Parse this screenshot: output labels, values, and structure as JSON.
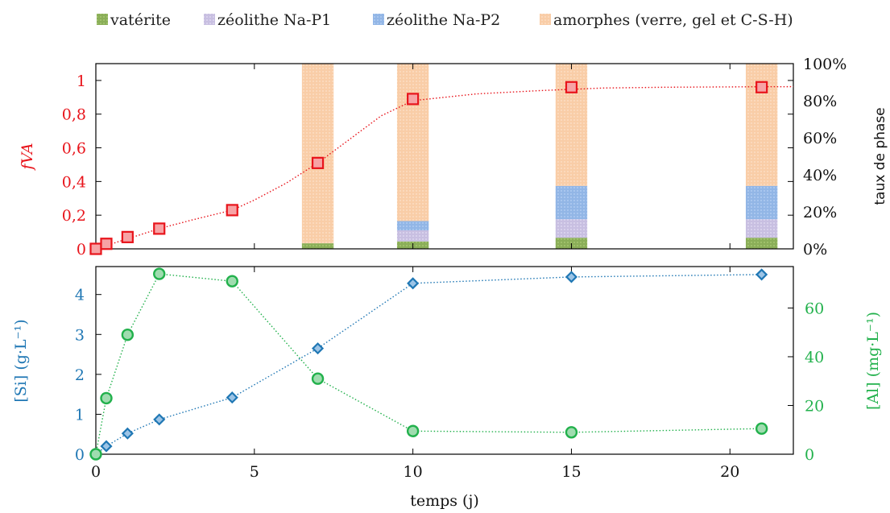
{
  "chart_data": [
    {
      "type": "line",
      "panel": "top",
      "xlim": [
        0,
        22
      ],
      "ylabel": "fVA",
      "ylim": [
        0,
        1.1
      ],
      "yticks": [
        0,
        0.2,
        0.4,
        0.6,
        0.8,
        1
      ],
      "ytick_labels": [
        "0",
        "0,2",
        "0,4",
        "0,6",
        "0,8",
        "1"
      ],
      "y2label": "taux de phase",
      "y2lim": [
        0,
        100
      ],
      "y2ticks": [
        0,
        20,
        40,
        60,
        80,
        100
      ],
      "y2tick_labels": [
        "0%",
        "20%",
        "40%",
        "60%",
        "80%",
        "100%"
      ],
      "series": [
        {
          "marker": "square",
          "color": "#e8141b",
          "x": [
            0,
            0.33,
            1,
            2,
            4.3,
            7,
            10,
            15,
            21
          ],
          "y": [
            0,
            0.03,
            0.07,
            0.12,
            0.23,
            0.51,
            0.89,
            0.96,
            0.96
          ]
        }
      ],
      "fit_curve": {
        "style": "dotted",
        "color": "#e8141b",
        "x": [
          0,
          1,
          2,
          3,
          4.3,
          5,
          6,
          7,
          8,
          9,
          10,
          12,
          14,
          16,
          18,
          20,
          22
        ],
        "y": [
          0,
          0.06,
          0.12,
          0.17,
          0.23,
          0.29,
          0.39,
          0.51,
          0.65,
          0.79,
          0.88,
          0.92,
          0.94,
          0.955,
          0.96,
          0.962,
          0.963
        ]
      },
      "stacked_bars": {
        "unit": "percent",
        "x": [
          7,
          10,
          15,
          21
        ],
        "width": 1,
        "series": [
          {
            "name": "vatérite",
            "color": "#8aae58",
            "values": [
              3,
              4,
              6,
              6
            ]
          },
          {
            "name": "zéolithe Na-P1",
            "color": "#c8bfe1",
            "values": [
              0,
              6,
              10,
              10
            ]
          },
          {
            "name": "zéolithe Na-P2",
            "color": "#92b6e6",
            "values": [
              0,
              5,
              18,
              18
            ]
          },
          {
            "name": "amorphes (verre, gel et C-S-H)",
            "color": "#f9cda7",
            "values": [
              97,
              85,
              66,
              66
            ]
          }
        ]
      },
      "legend_position": "top"
    },
    {
      "type": "line",
      "panel": "bottom",
      "xlabel": "temps (j)",
      "xlim": [
        0,
        22
      ],
      "xticks": [
        0,
        5,
        10,
        15,
        20
      ],
      "ylabel": "[Si] (g·L⁻¹)",
      "ylim": [
        0,
        4.7
      ],
      "yticks": [
        0,
        1,
        2,
        3,
        4
      ],
      "y2label": "[Al] (mg·L⁻¹)",
      "y2lim": [
        0,
        77
      ],
      "y2ticks": [
        0,
        20,
        40,
        60
      ],
      "series": [
        {
          "marker": "diamond",
          "color": "#1f77b4",
          "axis": "left",
          "x": [
            0,
            0.33,
            1,
            2,
            4.3,
            7,
            10,
            15,
            21
          ],
          "y": [
            0,
            0.2,
            0.52,
            0.87,
            1.42,
            2.65,
            4.28,
            4.44,
            4.5
          ]
        },
        {
          "marker": "circle",
          "color": "#22b14c",
          "axis": "right",
          "x": [
            0,
            0.33,
            1,
            2,
            4.3,
            7,
            10,
            15,
            21
          ],
          "y": [
            0,
            23,
            49,
            74,
            71,
            31,
            9.5,
            9,
            10.5
          ]
        }
      ]
    }
  ]
}
